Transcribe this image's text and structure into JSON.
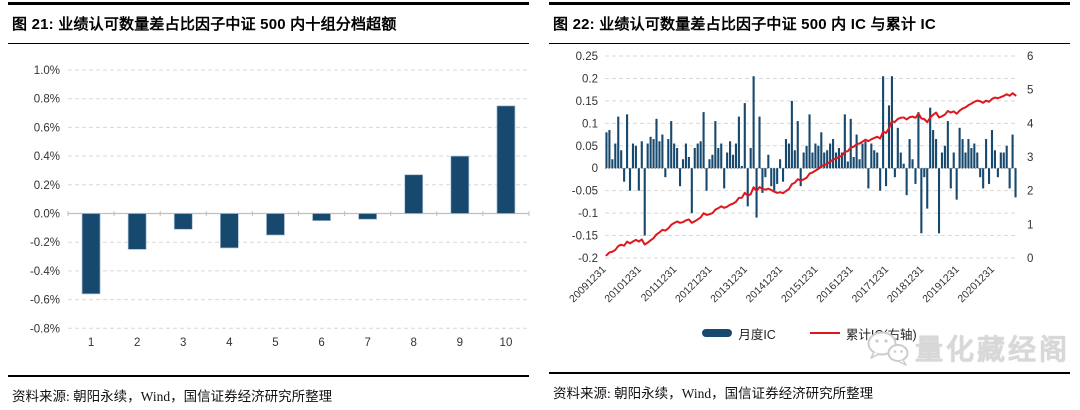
{
  "figure21": {
    "title": "图 21: 业绩认可数量差占比因子中证 500 内十组分档超额",
    "source": "资料来源: 朝阳永续，Wind，国信证券经济研究所整理",
    "chart_data": {
      "type": "bar",
      "categories": [
        "1",
        "2",
        "3",
        "4",
        "5",
        "6",
        "7",
        "8",
        "9",
        "10"
      ],
      "values": [
        -0.56,
        -0.25,
        -0.11,
        -0.24,
        -0.15,
        -0.05,
        -0.04,
        0.27,
        0.4,
        0.75
      ],
      "unit": "%",
      "y_ticks": [
        "1.0%",
        "0.8%",
        "0.6%",
        "0.4%",
        "0.2%",
        "0.0%",
        "-0.2%",
        "-0.4%",
        "-0.6%",
        "-0.8%"
      ],
      "ylim": [
        -0.8,
        1.0
      ],
      "grid": "dashed-horizontal",
      "legend_position": "none"
    }
  },
  "figure22": {
    "title": "图 22: 业绩认可数量差占比因子中证 500 内 IC 与累计 IC",
    "source": "资料来源: 朝阳永续，Wind，国信证券经济研究所整理",
    "chart_data": {
      "type": "bar+line",
      "x_start": "2009-12",
      "x_frequency": "monthly",
      "x_tick_labels": [
        "20091231",
        "20101231",
        "20111231",
        "20121231",
        "20131231",
        "20141231",
        "20151231",
        "20161231",
        "20171231",
        "20181231",
        "20191231",
        "20201231"
      ],
      "left_axis": {
        "ticks": [
          "0.25",
          "0.2",
          "0.15",
          "0.1",
          "0.05",
          "0",
          "-0.05",
          "-0.1",
          "-0.15",
          "-0.2"
        ],
        "range": [
          -0.2,
          0.25
        ]
      },
      "right_axis": {
        "ticks": [
          "6",
          "5",
          "4",
          "3",
          "2",
          "1",
          "0"
        ],
        "range": [
          0,
          6
        ]
      },
      "legend_position": "bottom",
      "series": [
        {
          "name": "月度IC",
          "type": "bar",
          "axis": "left",
          "values": [
            0.08,
            0.085,
            0.02,
            0.055,
            0.115,
            0.04,
            -0.03,
            0.12,
            -0.05,
            0.055,
            0.05,
            -0.05,
            0.06,
            -0.15,
            0.055,
            0.07,
            0.065,
            0.11,
            0.06,
            0.075,
            -0.02,
            0.065,
            0.105,
            0.055,
            0.045,
            -0.04,
            0.02,
            0.055,
            0.025,
            -0.1,
            0.045,
            0.055,
            0.06,
            0.125,
            -0.05,
            0.02,
            0.03,
            0.105,
            0.045,
            0.055,
            -0.045,
            0.035,
            0.06,
            0.03,
            0.055,
            0.115,
            0.005,
            0.145,
            -0.085,
            0.045,
            0.205,
            -0.11,
            0.115,
            -0.055,
            -0.02,
            0.03,
            -0.04,
            -0.05,
            -0.035,
            0.02,
            -0.03,
            0.065,
            0.055,
            0.15,
            0.04,
            0.105,
            -0.04,
            0.035,
            0.05,
            0.12,
            0.035,
            0.055,
            0.05,
            0.08,
            0.035,
            0.04,
            0.055,
            0.065,
            0.035,
            0.045,
            0.035,
            0.12,
            0.015,
            0.11,
            0.025,
            0.075,
            0.02,
            0.055,
            0.06,
            -0.045,
            0.055,
            0.04,
            0.035,
            -0.05,
            0.205,
            -0.04,
            0.14,
            0.205,
            -0.02,
            0.09,
            0.035,
            0.01,
            -0.06,
            0.065,
            0.02,
            -0.035,
            0.125,
            -0.145,
            -0.02,
            -0.09,
            0.135,
            0.085,
            0.065,
            -0.145,
            0.035,
            0.05,
            0.105,
            -0.045,
            0.035,
            -0.07,
            0.09,
            0.065,
            0.035,
            0.065,
            0.045,
            0.055,
            0.035,
            -0.02,
            -0.045,
            0.065,
            -0.035,
            0.085,
            0.04,
            -0.02,
            0.035,
            0.035,
            0.05,
            -0.045,
            0.075,
            -0.065
          ]
        },
        {
          "name": "累计IC(右轴)",
          "type": "line",
          "axis": "right",
          "derivation": "cumulative sum of 月度IC",
          "end_value": 4.83
        }
      ]
    }
  },
  "watermark": {
    "text": "量化藏经阁",
    "icon": "wechat-icon"
  },
  "colors": {
    "bar": "#17496e",
    "bar_edge": "#a7bdd2",
    "line": "#e0161d",
    "grid": "#d9d9d9",
    "zero_line": "#bfbfbf",
    "zero_line_dotted": "#8c8c8c",
    "axis_label": "#333333",
    "watermark": "#d8d8d8"
  }
}
